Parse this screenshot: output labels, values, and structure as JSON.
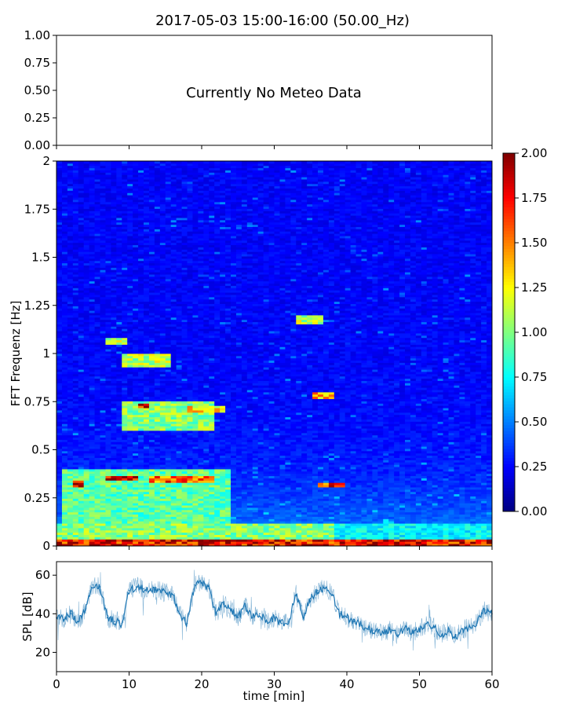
{
  "figure": {
    "title": "2017-05-03 15:00-16:00 (50.00_Hz)"
  },
  "chart_data": [
    {
      "type": "line",
      "panel": "meteo",
      "annotation": "Currently No Meteo Data",
      "xlabel": "",
      "ylabel": "",
      "ylim": [
        0,
        1
      ],
      "yticks": [
        "0.00",
        "0.25",
        "0.50",
        "0.75",
        "1.00"
      ],
      "series": []
    },
    {
      "type": "heatmap",
      "panel": "spectrogram",
      "xlabel": "",
      "ylabel": "FFT Frequenz [Hz]",
      "xlim": [
        0,
        60
      ],
      "ylim": [
        0,
        2
      ],
      "yticks": [
        "0",
        "0.25",
        "0.5",
        "0.75",
        "1",
        "1.25",
        "1.5",
        "1.75",
        "2"
      ],
      "colorbar": {
        "colormap": "jet",
        "range": [
          0,
          2
        ],
        "ticks": [
          "0.00",
          "0.25",
          "0.50",
          "0.75",
          "1.00",
          "1.25",
          "1.50",
          "1.75",
          "2.00"
        ]
      },
      "features": [
        {
          "t0": 0,
          "t1": 60,
          "f0": 0.0,
          "f1": 0.03,
          "value": 1.9
        },
        {
          "t0": 0,
          "t1": 38,
          "f0": 0.03,
          "f1": 0.12,
          "value": 1.1
        },
        {
          "t0": 38,
          "t1": 60,
          "f0": 0.03,
          "f1": 0.12,
          "value": 0.8
        },
        {
          "t0": 1,
          "t1": 24,
          "f0": 0.12,
          "f1": 0.4,
          "value": 1.0
        },
        {
          "t0": 2,
          "t1": 4,
          "f0": 0.31,
          "f1": 0.34,
          "value": 1.9
        },
        {
          "t0": 7,
          "t1": 11,
          "f0": 0.34,
          "f1": 0.36,
          "value": 1.9
        },
        {
          "t0": 13,
          "t1": 22,
          "f0": 0.33,
          "f1": 0.36,
          "value": 1.7
        },
        {
          "t0": 36,
          "t1": 40,
          "f0": 0.31,
          "f1": 0.33,
          "value": 1.8
        },
        {
          "t0": 9,
          "t1": 22,
          "f0": 0.6,
          "f1": 0.75,
          "value": 1.1
        },
        {
          "t0": 11,
          "t1": 13,
          "f0": 0.72,
          "f1": 0.74,
          "value": 1.9
        },
        {
          "t0": 18,
          "t1": 23,
          "f0": 0.7,
          "f1": 0.73,
          "value": 1.4
        },
        {
          "t0": 9,
          "t1": 16,
          "f0": 0.93,
          "f1": 1.0,
          "value": 1.2
        },
        {
          "t0": 7,
          "t1": 10,
          "f0": 1.05,
          "f1": 1.08,
          "value": 1.2
        },
        {
          "t0": 33,
          "t1": 37,
          "f0": 1.15,
          "f1": 1.2,
          "value": 1.2
        },
        {
          "t0": 35,
          "t1": 38,
          "f0": 0.77,
          "f1": 0.8,
          "value": 1.5
        }
      ]
    },
    {
      "type": "line",
      "panel": "spl",
      "xlabel": "time [min]",
      "ylabel": "SPL [dB]",
      "xlim": [
        0,
        60
      ],
      "ylim": [
        10,
        67
      ],
      "xticks": [
        "0",
        "10",
        "20",
        "30",
        "40",
        "50",
        "60"
      ],
      "yticks": [
        "20",
        "40",
        "60"
      ],
      "color": "#1f77b4",
      "series": [
        {
          "x": [
            0,
            1,
            2,
            3,
            4,
            5,
            6,
            7,
            8,
            9,
            10,
            11,
            12,
            13,
            14,
            15,
            16,
            17,
            18,
            19,
            20,
            21,
            22,
            23,
            24,
            25,
            26,
            27,
            28,
            29,
            30,
            31,
            32,
            33,
            34,
            35,
            36,
            37,
            38,
            39,
            40,
            41,
            42,
            43,
            44,
            45,
            46,
            47,
            48,
            49,
            50,
            51,
            52,
            53,
            54,
            55,
            56,
            57,
            58,
            59,
            60
          ],
          "y": [
            38,
            37,
            40,
            36,
            42,
            55,
            54,
            38,
            36,
            35,
            52,
            54,
            53,
            52,
            52,
            51,
            50,
            40,
            35,
            55,
            56,
            53,
            40,
            45,
            42,
            38,
            44,
            38,
            40,
            36,
            38,
            35,
            36,
            50,
            38,
            48,
            52,
            53,
            50,
            40,
            38,
            36,
            34,
            32,
            31,
            30,
            32,
            29,
            33,
            30,
            32,
            35,
            33,
            29,
            31,
            28,
            32,
            33,
            36,
            42,
            40
          ]
        }
      ]
    }
  ],
  "colors": {
    "line": "#1f77b4"
  }
}
